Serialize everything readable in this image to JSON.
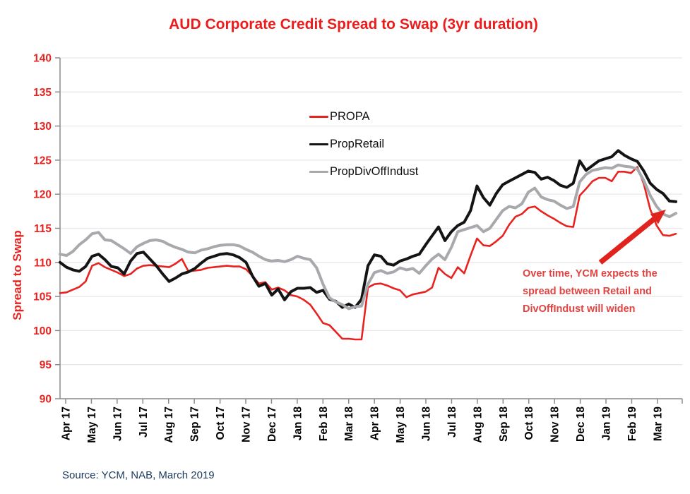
{
  "chart_data": {
    "type": "line",
    "title": "AUD Corporate Credit Spread to Swap (3yr duration)",
    "ylabel": "Spread to Swap",
    "xlabel": "",
    "ylim": [
      90,
      140
    ],
    "y_ticks": [
      90,
      95,
      100,
      105,
      110,
      115,
      120,
      125,
      130,
      135,
      140
    ],
    "x_labels": [
      "Apr 17",
      "May 17",
      "Jun 17",
      "Jul 17",
      "Aug 17",
      "Sep 17",
      "Oct 17",
      "Nov 17",
      "Dec 17",
      "Jan 18",
      "Feb 18",
      "Mar 18",
      "Apr 18",
      "May 18",
      "Jun 18",
      "Jul 18",
      "Aug 18",
      "Sep 18",
      "Oct 18",
      "Nov 18",
      "Dec 18",
      "Jan 19",
      "Feb 19",
      "Mar 19"
    ],
    "points_per_month": 4,
    "grid": "horizontal-light",
    "legend_position": "inside-top-center",
    "series": [
      {
        "name": "PROPA",
        "color": "#e8231f",
        "width": 2.6,
        "values": [
          105.5,
          105.6,
          106.0,
          106.4,
          107.2,
          109.5,
          109.9,
          109.3,
          108.9,
          108.5,
          108.0,
          108.3,
          109.1,
          109.5,
          109.6,
          109.5,
          109.4,
          109.3,
          109.8,
          110.5,
          108.7,
          108.8,
          108.9,
          109.2,
          109.3,
          109.4,
          109.5,
          109.4,
          109.4,
          109.0,
          108.0,
          106.9,
          107.1,
          106.0,
          106.3,
          105.9,
          105.2,
          105.0,
          104.5,
          103.8,
          102.5,
          101.1,
          100.8,
          99.8,
          98.8,
          98.8,
          98.7,
          98.7,
          106.3,
          106.8,
          106.9,
          106.6,
          106.2,
          105.9,
          104.9,
          105.3,
          105.5,
          105.7,
          106.3,
          109.2,
          108.3,
          107.7,
          109.3,
          108.4,
          111.0,
          113.5,
          112.5,
          112.4,
          113.1,
          113.9,
          115.5,
          116.7,
          117.1,
          118.0,
          118.2,
          117.5,
          116.9,
          116.4,
          115.8,
          115.3,
          115.2,
          119.8,
          120.8,
          121.9,
          122.4,
          122.4,
          121.9,
          123.3,
          123.3,
          123.1,
          124.0,
          121.5,
          117.8,
          115.4,
          114.0,
          113.9,
          114.2
        ]
      },
      {
        "name": "PropRetail",
        "color": "#141414",
        "width": 4,
        "values": [
          110.0,
          109.3,
          108.9,
          108.7,
          109.4,
          110.9,
          111.2,
          110.4,
          109.4,
          109.2,
          108.3,
          110.2,
          111.3,
          111.5,
          110.5,
          109.5,
          108.3,
          107.2,
          107.7,
          108.3,
          108.6,
          109.1,
          109.9,
          110.6,
          110.9,
          111.2,
          111.3,
          111.1,
          110.7,
          110.0,
          108.0,
          106.5,
          106.9,
          105.2,
          106.1,
          104.5,
          105.7,
          106.2,
          106.2,
          106.3,
          105.6,
          105.9,
          104.6,
          104.3,
          103.4,
          103.9,
          103.4,
          104.6,
          109.5,
          111.1,
          110.9,
          109.8,
          109.6,
          110.2,
          110.5,
          110.9,
          111.2,
          112.6,
          113.9,
          115.2,
          113.2,
          114.5,
          115.4,
          115.9,
          117.6,
          121.2,
          119.5,
          118.4,
          120.1,
          121.4,
          121.9,
          122.4,
          122.9,
          123.4,
          123.2,
          122.2,
          122.5,
          122.0,
          121.3,
          121.0,
          121.6,
          124.9,
          123.5,
          124.2,
          124.9,
          125.2,
          125.5,
          126.4,
          125.7,
          125.2,
          124.8,
          123.4,
          121.6,
          120.7,
          120.1,
          119.0,
          118.9
        ]
      },
      {
        "name": "PropDivOffIndust",
        "color": "#a7a9ac",
        "width": 4,
        "values": [
          111.2,
          111.0,
          111.6,
          112.6,
          113.3,
          114.2,
          114.4,
          113.3,
          113.2,
          112.6,
          112.0,
          111.3,
          112.3,
          112.8,
          113.2,
          113.3,
          113.1,
          112.6,
          112.2,
          111.9,
          111.5,
          111.4,
          111.8,
          112.0,
          112.3,
          112.5,
          112.6,
          112.6,
          112.4,
          111.9,
          111.5,
          110.9,
          110.4,
          110.2,
          110.3,
          110.1,
          110.4,
          110.9,
          110.6,
          110.4,
          109.2,
          106.8,
          104.8,
          104.2,
          103.8,
          103.2,
          103.5,
          103.6,
          106.8,
          108.5,
          108.8,
          108.4,
          108.6,
          109.2,
          108.9,
          109.1,
          108.4,
          109.5,
          110.5,
          111.2,
          110.4,
          112.2,
          114.5,
          114.8,
          115.1,
          115.4,
          114.5,
          115.0,
          116.3,
          117.6,
          118.2,
          118.0,
          118.6,
          120.3,
          120.9,
          119.6,
          119.2,
          119.0,
          118.4,
          117.9,
          118.2,
          121.8,
          122.9,
          123.5,
          123.7,
          123.9,
          123.8,
          124.3,
          124.1,
          124.0,
          123.7,
          122.0,
          119.8,
          118.2,
          117.1,
          116.7,
          117.2
        ]
      }
    ],
    "annotation": {
      "lines": [
        "Over time, YCM expects the",
        "spread between Retail and",
        "DivOffIndust will widen"
      ]
    },
    "source": "Source: YCM, NAB, March 2019",
    "colors": {
      "title": "#ed1c1c",
      "axis_tick_labels_y": "#e8231f",
      "axis_tick_labels_x": "#000000",
      "annotation": "#e04340",
      "source": "#1d3a5f",
      "grid": "#e9e9ec",
      "axis": "#8c8c8c",
      "arrow": "#e0231d"
    }
  }
}
